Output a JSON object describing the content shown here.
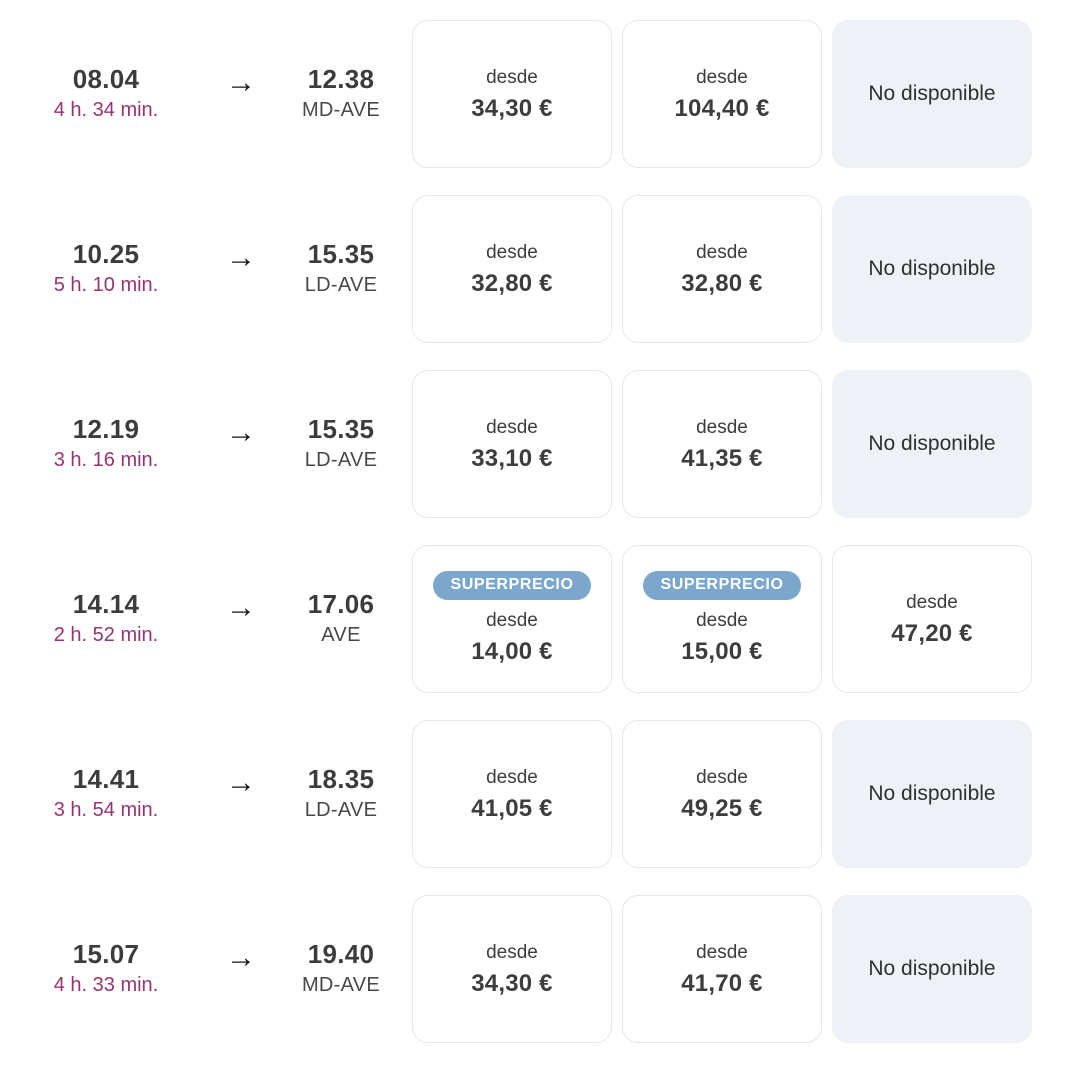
{
  "labels": {
    "from": "desde",
    "unavailable": "No disponible",
    "superprecio": "SUPERPRECIO",
    "arrow": "→"
  },
  "colors": {
    "duration_text": "#963471",
    "badge_bg": "#7ba7cc",
    "badge_text": "#ffffff",
    "unavailable_bg": "#eef1f5",
    "card_border": "#e7e7ea",
    "time_text": "#3c3c3e"
  },
  "rows": [
    {
      "dep_time": "08.04",
      "duration": "4 h. 34 min.",
      "arr_time": "12.38",
      "train_type": "MD-AVE",
      "fares": [
        {
          "available": true,
          "badge": false,
          "price": "34,30 €"
        },
        {
          "available": true,
          "badge": false,
          "price": "104,40 €"
        },
        {
          "available": false
        }
      ]
    },
    {
      "dep_time": "10.25",
      "duration": "5 h. 10 min.",
      "arr_time": "15.35",
      "train_type": "LD-AVE",
      "fares": [
        {
          "available": true,
          "badge": false,
          "price": "32,80 €"
        },
        {
          "available": true,
          "badge": false,
          "price": "32,80 €"
        },
        {
          "available": false
        }
      ]
    },
    {
      "dep_time": "12.19",
      "duration": "3 h. 16 min.",
      "arr_time": "15.35",
      "train_type": "LD-AVE",
      "fares": [
        {
          "available": true,
          "badge": false,
          "price": "33,10 €"
        },
        {
          "available": true,
          "badge": false,
          "price": "41,35 €"
        },
        {
          "available": false
        }
      ]
    },
    {
      "dep_time": "14.14",
      "duration": "2 h. 52 min.",
      "arr_time": "17.06",
      "train_type": "AVE",
      "fares": [
        {
          "available": true,
          "badge": true,
          "price": "14,00 €"
        },
        {
          "available": true,
          "badge": true,
          "price": "15,00 €"
        },
        {
          "available": true,
          "badge": false,
          "price": "47,20 €"
        }
      ]
    },
    {
      "dep_time": "14.41",
      "duration": "3 h. 54 min.",
      "arr_time": "18.35",
      "train_type": "LD-AVE",
      "fares": [
        {
          "available": true,
          "badge": false,
          "price": "41,05 €"
        },
        {
          "available": true,
          "badge": false,
          "price": "49,25 €"
        },
        {
          "available": false
        }
      ]
    },
    {
      "dep_time": "15.07",
      "duration": "4 h. 33 min.",
      "arr_time": "19.40",
      "train_type": "MD-AVE",
      "fares": [
        {
          "available": true,
          "badge": false,
          "price": "34,30 €"
        },
        {
          "available": true,
          "badge": false,
          "price": "41,70 €"
        },
        {
          "available": false
        }
      ]
    }
  ]
}
